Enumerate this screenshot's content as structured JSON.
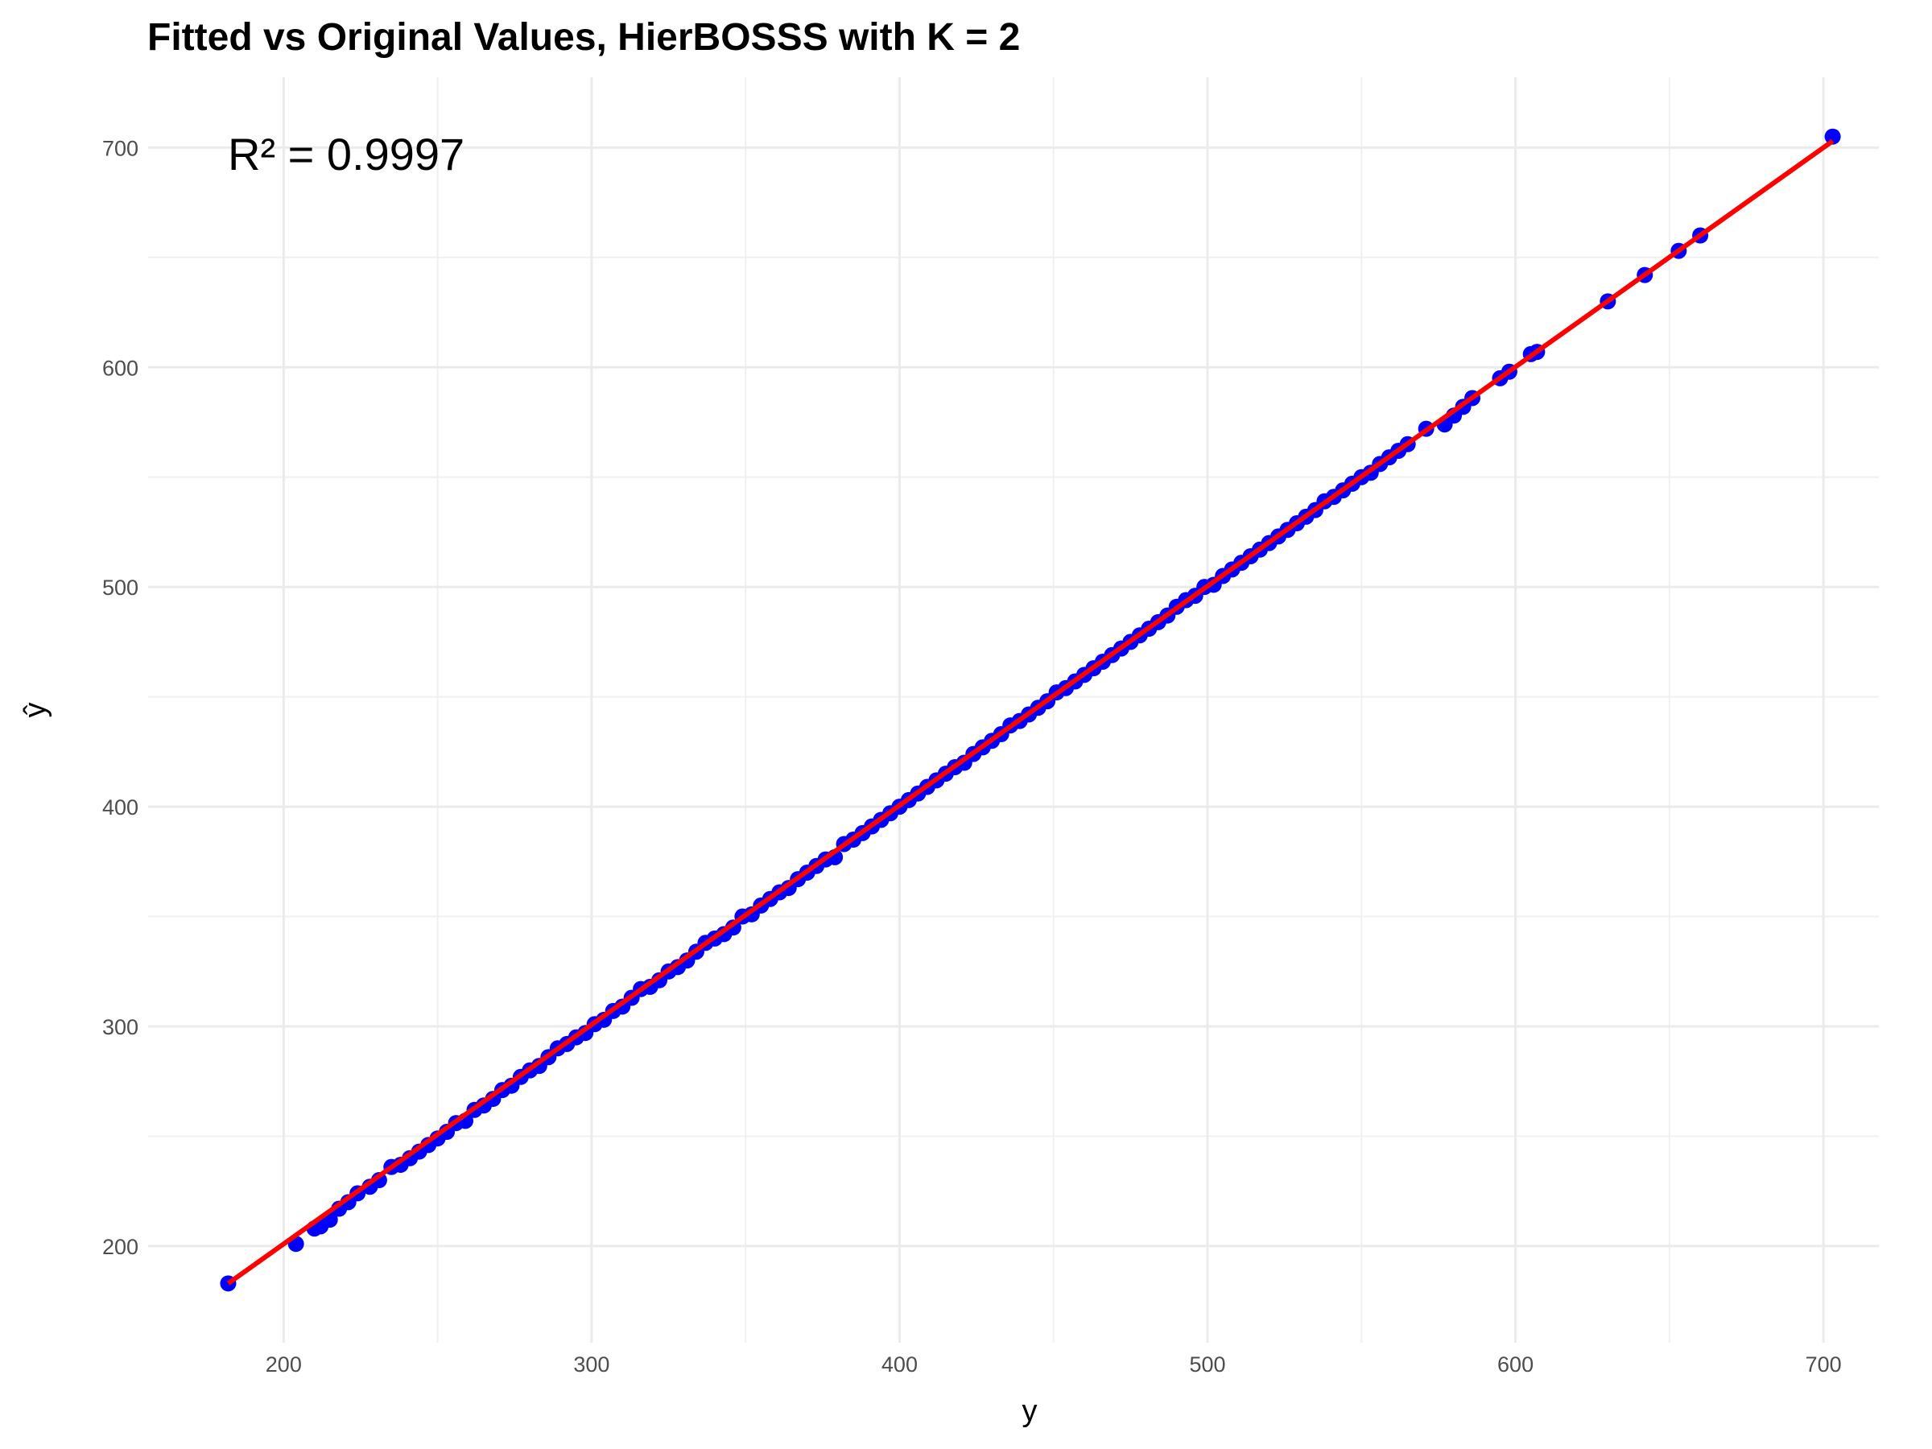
{
  "chart_data": {
    "type": "scatter",
    "title": "Fitted vs Original Values, HierBOSSS with K = 2",
    "xlabel": "y",
    "ylabel": "ŷ",
    "annotation": "R² = 0.9997",
    "xlim": [
      156,
      718
    ],
    "ylim": [
      156,
      732
    ],
    "xticks": [
      200,
      300,
      400,
      500,
      600,
      700
    ],
    "yticks": [
      200,
      300,
      400,
      500,
      600,
      700
    ],
    "xminor": [
      250,
      350,
      450,
      550,
      650
    ],
    "yminor": [
      250,
      350,
      450,
      550,
      650
    ],
    "grid": true,
    "point_color": "#0000ff",
    "line_color": "#ff0000",
    "fit_line": {
      "x": [
        182,
        703
      ],
      "y": [
        183,
        703
      ]
    },
    "points": [
      [
        182,
        183
      ],
      [
        204,
        201
      ],
      [
        210,
        208
      ],
      [
        212,
        209
      ],
      [
        215,
        212
      ],
      [
        218,
        217
      ],
      [
        221,
        220
      ],
      [
        224,
        224
      ],
      [
        228,
        227
      ],
      [
        231,
        230
      ],
      [
        235,
        236
      ],
      [
        238,
        237
      ],
      [
        241,
        240
      ],
      [
        244,
        243
      ],
      [
        247,
        246
      ],
      [
        250,
        249
      ],
      [
        253,
        252
      ],
      [
        256,
        256
      ],
      [
        259,
        257
      ],
      [
        262,
        262
      ],
      [
        265,
        264
      ],
      [
        268,
        267
      ],
      [
        271,
        271
      ],
      [
        274,
        273
      ],
      [
        277,
        277
      ],
      [
        280,
        280
      ],
      [
        283,
        282
      ],
      [
        286,
        286
      ],
      [
        289,
        290
      ],
      [
        292,
        292
      ],
      [
        295,
        295
      ],
      [
        298,
        297
      ],
      [
        301,
        301
      ],
      [
        304,
        303
      ],
      [
        307,
        307
      ],
      [
        310,
        309
      ],
      [
        313,
        313
      ],
      [
        316,
        317
      ],
      [
        319,
        318
      ],
      [
        322,
        321
      ],
      [
        325,
        325
      ],
      [
        328,
        327
      ],
      [
        331,
        330
      ],
      [
        334,
        334
      ],
      [
        337,
        338
      ],
      [
        340,
        340
      ],
      [
        343,
        342
      ],
      [
        346,
        345
      ],
      [
        349,
        350
      ],
      [
        352,
        351
      ],
      [
        355,
        355
      ],
      [
        358,
        358
      ],
      [
        361,
        361
      ],
      [
        364,
        363
      ],
      [
        367,
        367
      ],
      [
        370,
        370
      ],
      [
        373,
        373
      ],
      [
        376,
        376
      ],
      [
        379,
        377
      ],
      [
        382,
        383
      ],
      [
        385,
        385
      ],
      [
        388,
        388
      ],
      [
        391,
        391
      ],
      [
        394,
        394
      ],
      [
        397,
        397
      ],
      [
        400,
        400
      ],
      [
        403,
        403
      ],
      [
        406,
        406
      ],
      [
        409,
        409
      ],
      [
        412,
        412
      ],
      [
        415,
        415
      ],
      [
        418,
        418
      ],
      [
        421,
        420
      ],
      [
        424,
        424
      ],
      [
        427,
        427
      ],
      [
        430,
        430
      ],
      [
        433,
        433
      ],
      [
        436,
        437
      ],
      [
        439,
        439
      ],
      [
        442,
        442
      ],
      [
        445,
        445
      ],
      [
        448,
        448
      ],
      [
        451,
        452
      ],
      [
        454,
        454
      ],
      [
        457,
        457
      ],
      [
        460,
        460
      ],
      [
        463,
        463
      ],
      [
        466,
        466
      ],
      [
        469,
        469
      ],
      [
        472,
        472
      ],
      [
        475,
        475
      ],
      [
        478,
        478
      ],
      [
        481,
        481
      ],
      [
        484,
        484
      ],
      [
        487,
        487
      ],
      [
        490,
        491
      ],
      [
        493,
        494
      ],
      [
        496,
        496
      ],
      [
        499,
        500
      ],
      [
        502,
        501
      ],
      [
        505,
        505
      ],
      [
        508,
        508
      ],
      [
        511,
        511
      ],
      [
        514,
        514
      ],
      [
        517,
        517
      ],
      [
        520,
        520
      ],
      [
        523,
        523
      ],
      [
        526,
        526
      ],
      [
        529,
        529
      ],
      [
        532,
        532
      ],
      [
        535,
        535
      ],
      [
        538,
        539
      ],
      [
        541,
        541
      ],
      [
        544,
        544
      ],
      [
        547,
        547
      ],
      [
        550,
        550
      ],
      [
        553,
        552
      ],
      [
        556,
        556
      ],
      [
        559,
        559
      ],
      [
        562,
        562
      ],
      [
        565,
        565
      ],
      [
        571,
        572
      ],
      [
        577,
        574
      ],
      [
        580,
        578
      ],
      [
        583,
        582
      ],
      [
        586,
        586
      ],
      [
        595,
        595
      ],
      [
        598,
        598
      ],
      [
        605,
        606
      ],
      [
        607,
        607
      ],
      [
        630,
        630
      ],
      [
        642,
        642
      ],
      [
        653,
        653
      ],
      [
        660,
        660
      ],
      [
        703,
        705
      ]
    ]
  }
}
